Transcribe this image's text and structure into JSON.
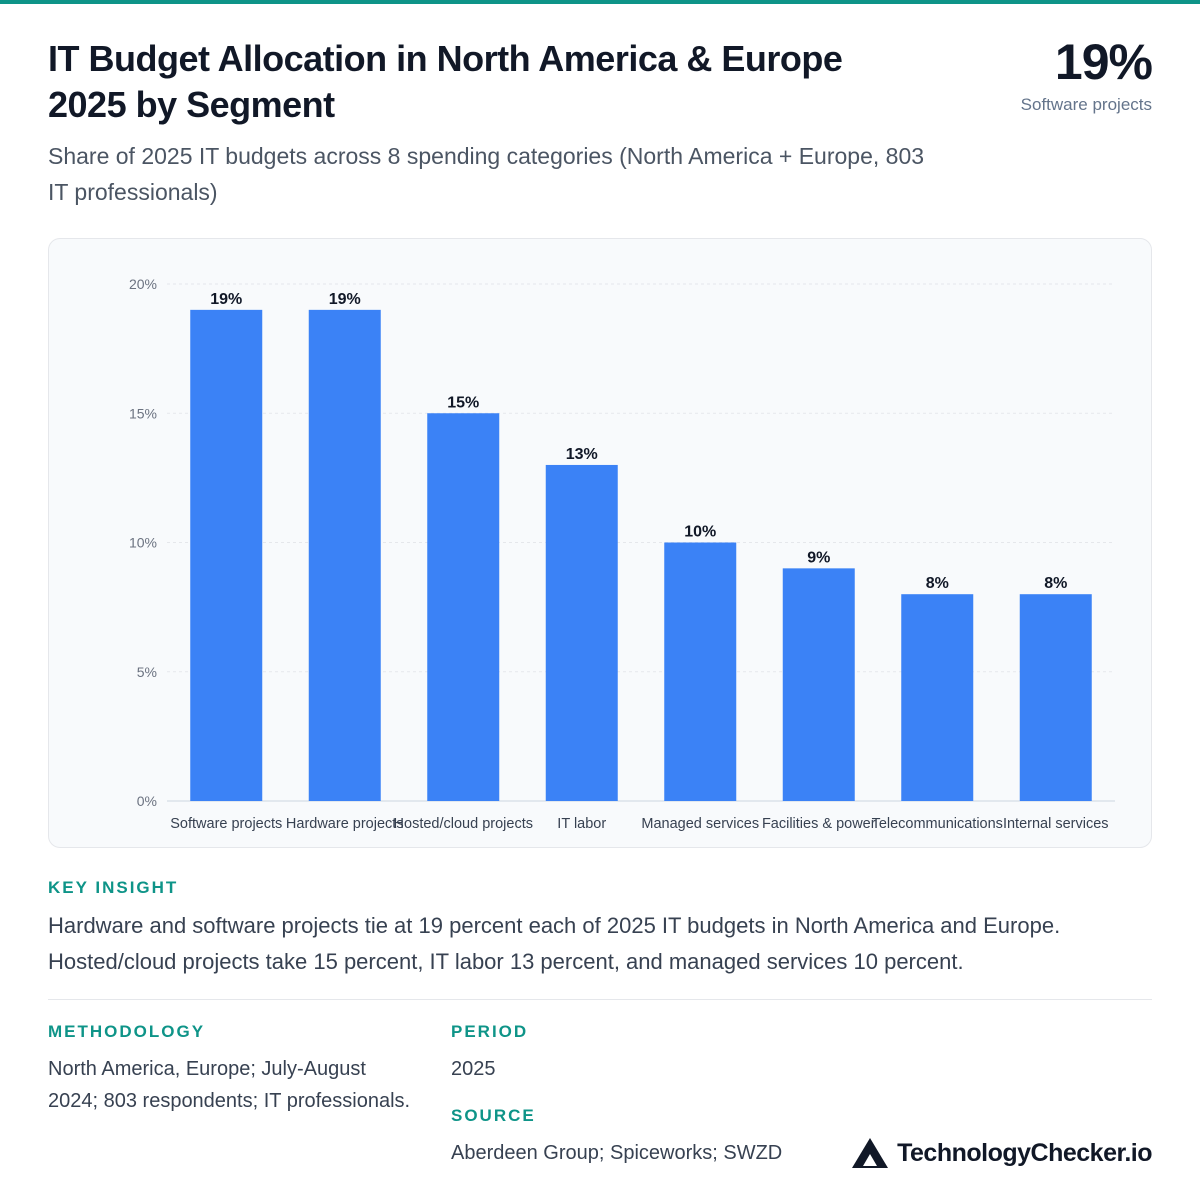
{
  "header": {
    "title": "IT Budget Allocation in North America & Europe 2025 by Segment",
    "subtitle": "Share of 2025 IT budgets across 8 spending categories (North America + Europe, 803 IT professionals)",
    "kpi_value": "19%",
    "kpi_label": "Software projects"
  },
  "chart_data": {
    "type": "bar",
    "categories": [
      "Software projects",
      "Hardware projects",
      "Hosted/cloud projects",
      "IT labor",
      "Managed services",
      "Facilities & power",
      "Telecommunications",
      "Internal services"
    ],
    "values": [
      19,
      19,
      15,
      13,
      10,
      9,
      8,
      8
    ],
    "data_labels": [
      "19%",
      "19%",
      "15%",
      "13%",
      "10%",
      "9%",
      "8%",
      "8%"
    ],
    "y_ticks": [
      0,
      5,
      10,
      15,
      20
    ],
    "y_tick_labels": [
      "0%",
      "5%",
      "10%",
      "15%",
      "20%"
    ],
    "ylim": [
      0,
      20
    ],
    "grid": true,
    "bar_color": "#3b82f6"
  },
  "insight": {
    "label": "KEY INSIGHT",
    "text": "Hardware and software projects tie at 19 percent each of 2025 IT budgets in North America and Europe. Hosted/cloud projects take 15 percent, IT labor 13 percent, and managed services 10 percent."
  },
  "methodology": {
    "label": "METHODOLOGY",
    "text": "North America, Europe; July-August 2024; 803 respondents; IT professionals."
  },
  "period": {
    "label": "PERIOD",
    "text": "2025"
  },
  "source": {
    "label": "SOURCE",
    "text": "Aberdeen Group; Spiceworks; SWZD"
  },
  "brand": {
    "name": "TechnologyChecker.io",
    "logo_icon": "triangle-logo-icon"
  },
  "colors": {
    "accent": "#0e9488",
    "bar": "#3b82f6"
  }
}
